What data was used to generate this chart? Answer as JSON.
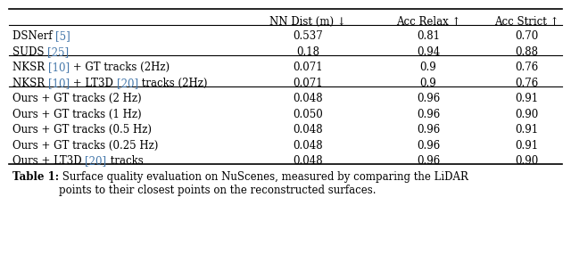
{
  "header": [
    "NN Dist (m) ↓",
    "Acc Relax ↑",
    "Acc Strict ↑"
  ],
  "groups": [
    {
      "rows": [
        {
          "label_parts": [
            [
              "DSNerf ",
              "black"
            ],
            [
              "[5]",
              "#4477aa"
            ]
          ],
          "values": [
            "0.537",
            "0.81",
            "0.70"
          ]
        },
        {
          "label_parts": [
            [
              "SUDS ",
              "black"
            ],
            [
              "[25]",
              "#4477aa"
            ]
          ],
          "values": [
            "0.18",
            "0.94",
            "0.88"
          ]
        }
      ]
    },
    {
      "rows": [
        {
          "label_parts": [
            [
              "NKSR ",
              "black"
            ],
            [
              "[10]",
              "#4477aa"
            ],
            [
              " + GT tracks (2Hz)",
              "black"
            ]
          ],
          "values": [
            "0.071",
            "0.9",
            "0.76"
          ]
        },
        {
          "label_parts": [
            [
              "NKSR ",
              "black"
            ],
            [
              "[10]",
              "#4477aa"
            ],
            [
              " + LT3D ",
              "black"
            ],
            [
              "[20]",
              "#4477aa"
            ],
            [
              " tracks (2Hz)",
              "black"
            ]
          ],
          "values": [
            "0.071",
            "0.9",
            "0.76"
          ]
        }
      ]
    },
    {
      "rows": [
        {
          "label_parts": [
            [
              "Ours + GT tracks (2 Hz)",
              "black"
            ]
          ],
          "values": [
            "0.048",
            "0.96",
            "0.91"
          ]
        },
        {
          "label_parts": [
            [
              "Ours + GT tracks (1 Hz)",
              "black"
            ]
          ],
          "values": [
            "0.050",
            "0.96",
            "0.90"
          ]
        },
        {
          "label_parts": [
            [
              "Ours + GT tracks (0.5 Hz)",
              "black"
            ]
          ],
          "values": [
            "0.048",
            "0.96",
            "0.91"
          ]
        },
        {
          "label_parts": [
            [
              "Ours + GT tracks (0.25 Hz)",
              "black"
            ]
          ],
          "values": [
            "0.048",
            "0.96",
            "0.91"
          ]
        },
        {
          "label_parts": [
            [
              "Ours + LT3D ",
              "black"
            ],
            [
              "[20]",
              "#4477aa"
            ],
            [
              " tracks",
              "black"
            ]
          ],
          "values": [
            "0.048",
            "0.96",
            "0.90"
          ]
        }
      ]
    }
  ],
  "caption_bold": "Table 1:",
  "caption_normal": " Surface quality evaluation on NuScenes, measured by comparing the LiDAR\npoints to their closest points on the reconstructed surfaces.",
  "font_size": 8.5,
  "caption_font_size": 8.5,
  "figwidth": 6.4,
  "figheight": 2.86,
  "dpi": 100
}
